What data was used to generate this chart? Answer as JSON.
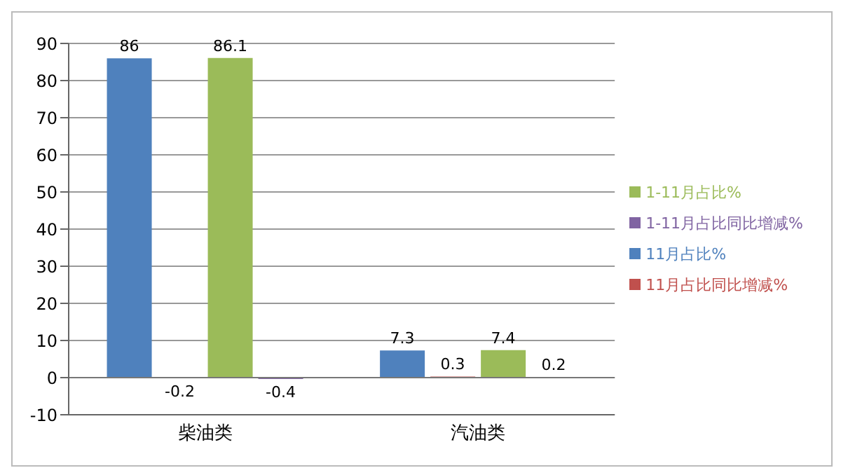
{
  "chart_data": {
    "type": "bar",
    "categories": [
      "柴油类",
      "汽油类"
    ],
    "series": [
      {
        "name": "11月占比%",
        "color": "#4f81bd",
        "values": [
          86,
          7.3
        ]
      },
      {
        "name": "11月占比同比增减%",
        "color": "#c0504d",
        "values": [
          -0.2,
          0.3
        ]
      },
      {
        "name": "1-11月占比%",
        "color": "#9bbb59",
        "values": [
          86.1,
          7.4
        ]
      },
      {
        "name": "1-11月占比同比增减%",
        "color": "#8064a2",
        "values": [
          -0.4,
          0.2
        ]
      }
    ],
    "ylim": [
      -10,
      90
    ],
    "yticks": [
      -10,
      0,
      10,
      20,
      30,
      40,
      50,
      60,
      70,
      80,
      90
    ],
    "grid": "y",
    "legend": "right",
    "data_labels": true
  }
}
